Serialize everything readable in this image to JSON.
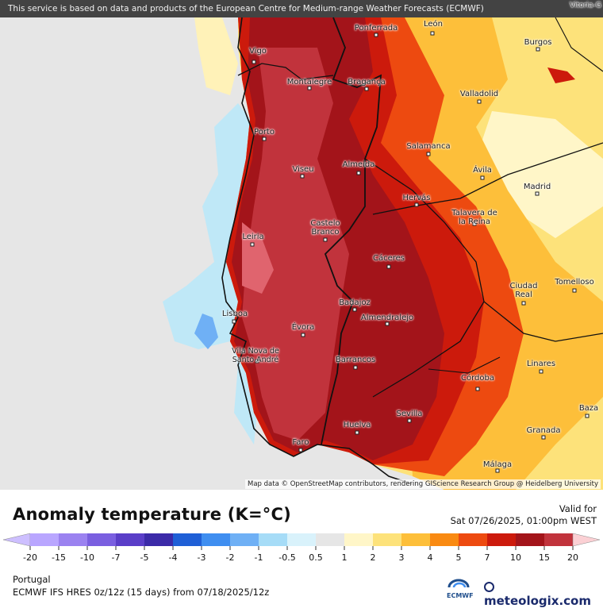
{
  "banner": "This service is based on data and products of the European Centre for Medium-range Weather Forecasts (ECMWF)",
  "attribution": "Map data © OpenStreetMap contributors, rendering GIScience Research Group @ Heidelberg University",
  "cities": [
    {
      "name": "Vigo"
    },
    {
      "name": "Ponferrada"
    },
    {
      "name": "León"
    },
    {
      "name": "Burgos"
    },
    {
      "name": "Montalegre"
    },
    {
      "name": "Bragança"
    },
    {
      "name": "Valladolid"
    },
    {
      "name": "Porto"
    },
    {
      "name": "Salamanca"
    },
    {
      "name": "Viseu"
    },
    {
      "name": "Almeida"
    },
    {
      "name": "Ávila"
    },
    {
      "name": "Madrid"
    },
    {
      "name": "Hervás"
    },
    {
      "name": "Talavera de la Reina"
    },
    {
      "name": "Castelo Branco"
    },
    {
      "name": "Leiria"
    },
    {
      "name": "Cáceres"
    },
    {
      "name": "Ciudad Real"
    },
    {
      "name": "Tomelloso"
    },
    {
      "name": "Badajoz"
    },
    {
      "name": "Lisboa"
    },
    {
      "name": "Almendralejo"
    },
    {
      "name": "Évora"
    },
    {
      "name": "Vila Nova de Santo André"
    },
    {
      "name": "Barrancos"
    },
    {
      "name": "Linares"
    },
    {
      "name": "Córdoba"
    },
    {
      "name": "Sevilla"
    },
    {
      "name": "Baza"
    },
    {
      "name": "Huelva"
    },
    {
      "name": "Granada"
    },
    {
      "name": "Faro"
    },
    {
      "name": "Málaga"
    },
    {
      "name": "Vitoria-G"
    }
  ],
  "legend": {
    "title": "Anomaly temperature (K=°C)",
    "valid_label": "Valid for",
    "valid_date": "Sat 07/26/2025, 01:00pm WEST",
    "ticks": [
      "-20",
      "-15",
      "-10",
      "-7",
      "-5",
      "-4",
      "-3",
      "-2",
      "-1",
      "-0.5",
      "0.5",
      "1",
      "2",
      "3",
      "4",
      "5",
      "7",
      "10",
      "15",
      "20"
    ],
    "colors": [
      "#b9a6ff",
      "#9b82f0",
      "#7a5fe0",
      "#5a3ec8",
      "#3b2aa8",
      "#1f5fd6",
      "#3f8ef0",
      "#6fb0f5",
      "#a6dcf7",
      "#d9f2fb",
      "#e6e6e6",
      "#fff6c8",
      "#fde27a",
      "#fdbf3a",
      "#f98a12",
      "#ed4a10",
      "#cc1a0c",
      "#a3141a",
      "#c1333c",
      "#e0646e",
      "#f3a3aa"
    ],
    "low_color": "#cdbfff",
    "high_color": "#fbd0d4"
  },
  "footer": {
    "region": "Portugal",
    "model_info": "ECMWF IFS HRES 0z/12z (15 days) from 07/18/2025/12z",
    "ecmwf_label": "ECMWF",
    "brand": "meteologix.com"
  }
}
